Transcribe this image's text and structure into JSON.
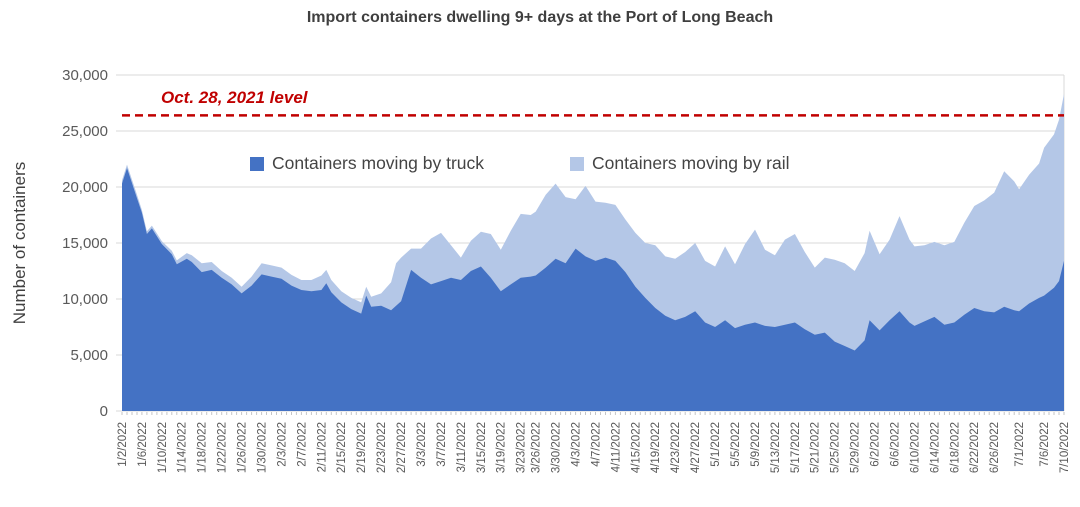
{
  "chart_data": {
    "type": "area",
    "stacked": true,
    "title": "Import containers dwelling 9+ days at the Port of Long Beach",
    "ylabel": "Number of containers",
    "xlabel": "",
    "ylim": [
      0,
      30000
    ],
    "grid": true,
    "legend_position": "top-inside",
    "y_ticks": [
      {
        "v": 0,
        "label": "0"
      },
      {
        "v": 5000,
        "label": "5,000"
      },
      {
        "v": 10000,
        "label": "10,000"
      },
      {
        "v": 15000,
        "label": "15,000"
      },
      {
        "v": 20000,
        "label": "20,000"
      },
      {
        "v": 25000,
        "label": "25,000"
      },
      {
        "v": 30000,
        "label": "30,000"
      }
    ],
    "x_tick_labels": [
      "1/2/2022",
      "1/6/2022",
      "1/10/2022",
      "1/14/2022",
      "1/18/2022",
      "1/22/2022",
      "1/26/2022",
      "1/30/2022",
      "2/3/2022",
      "2/7/2022",
      "2/11/2022",
      "2/15/2022",
      "2/19/2022",
      "2/23/2022",
      "2/27/2022",
      "3/3/2022",
      "3/7/2022",
      "3/11/2022",
      "3/15/2022",
      "3/19/2022",
      "3/23/2022",
      "3/26/2022",
      "3/30/2022",
      "4/3/2022",
      "4/7/2022",
      "4/11/2022",
      "4/15/2022",
      "4/19/2022",
      "4/23/2022",
      "4/27/2022",
      "5/1/2022",
      "5/5/2022",
      "5/9/2022",
      "5/13/2022",
      "5/17/2022",
      "5/21/2022",
      "5/25/2022",
      "5/29/2022",
      "6/2/2022",
      "6/6/2022",
      "6/10/2022",
      "6/14/2022",
      "6/18/2022",
      "6/22/2022",
      "6/26/2022",
      "7/1/2022",
      "7/6/2022",
      "7/10/2022"
    ],
    "reference_line": {
      "label": "Oct. 28, 2021 level",
      "value": 26400,
      "color": "#C00000",
      "style": "dashed"
    },
    "series": [
      {
        "name": "Containers moving by truck",
        "color": "#4472C4"
      },
      {
        "name": "Containers moving by rail",
        "color": "#B4C7E7"
      }
    ],
    "rows_format": [
      "date",
      "truck",
      "rail"
    ],
    "rows": [
      [
        "1/2/2022",
        20300,
        300
      ],
      [
        "1/3/2022",
        21700,
        300
      ],
      [
        "1/5/2022",
        19000,
        300
      ],
      [
        "1/6/2022",
        17700,
        250
      ],
      [
        "1/7/2022",
        15800,
        250
      ],
      [
        "1/8/2022",
        16300,
        250
      ],
      [
        "1/10/2022",
        14900,
        250
      ],
      [
        "1/12/2022",
        14000,
        300
      ],
      [
        "1/13/2022",
        13100,
        350
      ],
      [
        "1/15/2022",
        13600,
        500
      ],
      [
        "1/16/2022",
        13300,
        600
      ],
      [
        "1/18/2022",
        12400,
        800
      ],
      [
        "1/20/2022",
        12600,
        700
      ],
      [
        "1/22/2022",
        11900,
        600
      ],
      [
        "1/24/2022",
        11300,
        600
      ],
      [
        "1/26/2022",
        10500,
        600
      ],
      [
        "1/28/2022",
        11200,
        800
      ],
      [
        "1/30/2022",
        12200,
        1000
      ],
      [
        "2/1/2022",
        12000,
        1000
      ],
      [
        "2/3/2022",
        11800,
        1000
      ],
      [
        "2/5/2022",
        11200,
        950
      ],
      [
        "2/7/2022",
        10800,
        900
      ],
      [
        "2/9/2022",
        10700,
        1000
      ],
      [
        "2/11/2022",
        10800,
        1300
      ],
      [
        "2/12/2022",
        11400,
        1200
      ],
      [
        "2/13/2022",
        10600,
        1100
      ],
      [
        "2/15/2022",
        9700,
        1000
      ],
      [
        "2/17/2022",
        9100,
        1000
      ],
      [
        "2/19/2022",
        8700,
        1000
      ],
      [
        "2/20/2022",
        10300,
        800
      ],
      [
        "2/21/2022",
        9300,
        900
      ],
      [
        "2/23/2022",
        9400,
        1100
      ],
      [
        "2/25/2022",
        9000,
        2500
      ],
      [
        "2/26/2022",
        9400,
        3800
      ],
      [
        "2/27/2022",
        9800,
        3900
      ],
      [
        "3/1/2022",
        12600,
        1900
      ],
      [
        "3/3/2022",
        11900,
        2600
      ],
      [
        "3/5/2022",
        11300,
        4100
      ],
      [
        "3/7/2022",
        11600,
        4300
      ],
      [
        "3/9/2022",
        11900,
        2900
      ],
      [
        "3/11/2022",
        11700,
        2000
      ],
      [
        "3/13/2022",
        12500,
        2700
      ],
      [
        "3/15/2022",
        12900,
        3100
      ],
      [
        "3/17/2022",
        11900,
        3900
      ],
      [
        "3/19/2022",
        10700,
        3700
      ],
      [
        "3/21/2022",
        11300,
        4800
      ],
      [
        "3/23/2022",
        11900,
        5700
      ],
      [
        "3/25/2022",
        12000,
        5500
      ],
      [
        "3/26/2022",
        12100,
        5700
      ],
      [
        "3/28/2022",
        12800,
        6500
      ],
      [
        "3/30/2022",
        13600,
        6700
      ],
      [
        "4/1/2022",
        13200,
        5900
      ],
      [
        "4/3/2022",
        14500,
        4400
      ],
      [
        "4/5/2022",
        13800,
        6300
      ],
      [
        "4/7/2022",
        13400,
        5300
      ],
      [
        "4/9/2022",
        13700,
        4900
      ],
      [
        "4/11/2022",
        13400,
        5000
      ],
      [
        "4/13/2022",
        12400,
        4700
      ],
      [
        "4/15/2022",
        11100,
        4800
      ],
      [
        "4/17/2022",
        10100,
        4900
      ],
      [
        "4/19/2022",
        9200,
        5600
      ],
      [
        "4/21/2022",
        8500,
        5300
      ],
      [
        "4/23/2022",
        8100,
        5500
      ],
      [
        "4/25/2022",
        8400,
        5800
      ],
      [
        "4/27/2022",
        8900,
        6100
      ],
      [
        "4/29/2022",
        7900,
        5500
      ],
      [
        "5/1/2022",
        7500,
        5400
      ],
      [
        "5/3/2022",
        8100,
        6600
      ],
      [
        "5/5/2022",
        7400,
        5700
      ],
      [
        "5/7/2022",
        7700,
        7200
      ],
      [
        "5/9/2022",
        7900,
        8300
      ],
      [
        "5/11/2022",
        7600,
        6800
      ],
      [
        "5/13/2022",
        7500,
        6400
      ],
      [
        "5/15/2022",
        7700,
        7600
      ],
      [
        "5/17/2022",
        7900,
        7900
      ],
      [
        "5/19/2022",
        7300,
        6900
      ],
      [
        "5/21/2022",
        6800,
        6000
      ],
      [
        "5/23/2022",
        7000,
        6700
      ],
      [
        "5/25/2022",
        6200,
        7300
      ],
      [
        "5/27/2022",
        5800,
        7400
      ],
      [
        "5/29/2022",
        5400,
        7100
      ],
      [
        "5/31/2022",
        6300,
        7800
      ],
      [
        "6/1/2022",
        8100,
        8000
      ],
      [
        "6/3/2022",
        7200,
        6800
      ],
      [
        "6/5/2022",
        8100,
        7200
      ],
      [
        "6/7/2022",
        8900,
        8500
      ],
      [
        "6/9/2022",
        7900,
        7400
      ],
      [
        "6/10/2022",
        7600,
        7100
      ],
      [
        "6/12/2022",
        8000,
        6800
      ],
      [
        "6/14/2022",
        8400,
        6700
      ],
      [
        "6/16/2022",
        7700,
        7100
      ],
      [
        "6/18/2022",
        7900,
        7200
      ],
      [
        "6/20/2022",
        8600,
        8200
      ],
      [
        "6/22/2022",
        9200,
        9100
      ],
      [
        "6/24/2022",
        8900,
        9900
      ],
      [
        "6/26/2022",
        8800,
        10700
      ],
      [
        "6/28/2022",
        9300,
        12100
      ],
      [
        "6/30/2022",
        9000,
        11500
      ],
      [
        "7/1/2022",
        8900,
        10900
      ],
      [
        "7/3/2022",
        9600,
        11500
      ],
      [
        "7/5/2022",
        10100,
        12000
      ],
      [
        "7/6/2022",
        10300,
        13200
      ],
      [
        "7/8/2022",
        11000,
        13700
      ],
      [
        "7/9/2022",
        11600,
        14400
      ],
      [
        "7/10/2022",
        13400,
        14900
      ]
    ]
  }
}
